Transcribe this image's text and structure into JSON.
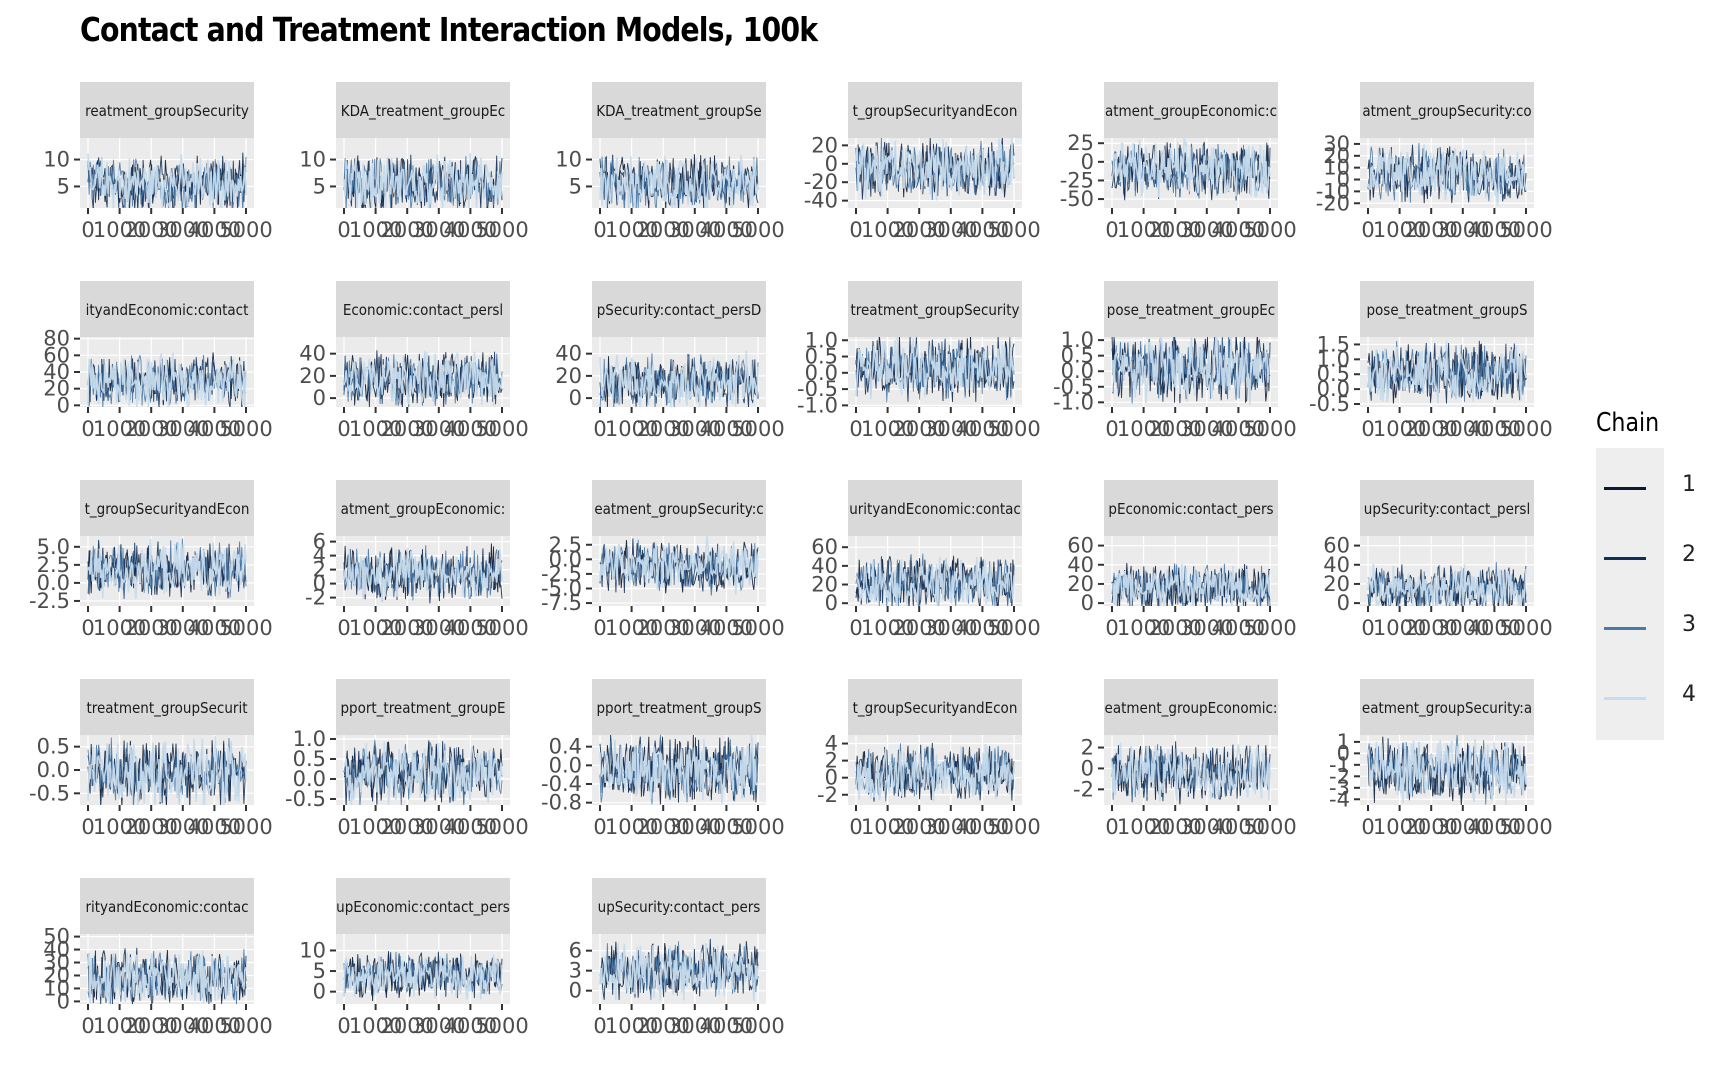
{
  "title": "Contact and Treatment Interaction Models, 100k",
  "chart_data": {
    "type": "line",
    "description_kind": "MCMC trace plots faceted by parameter",
    "x_tick_labels": [
      "0",
      "1000",
      "2000",
      "3000",
      "4000",
      "5000"
    ],
    "x_range": [
      0,
      5000
    ],
    "legend": {
      "title": "Chain",
      "placement": "right",
      "entries": [
        {
          "label": "1",
          "color": "#0b1a33"
        },
        {
          "label": "2",
          "color": "#0e2f57"
        },
        {
          "label": "3",
          "color": "#4a7aa8"
        },
        {
          "label": "4",
          "color": "#c6dbec"
        }
      ]
    },
    "panels": [
      {
        "strip": "reatment_groupSecurity",
        "ylim": [
          1,
          14
        ],
        "yticks": [
          5,
          10
        ],
        "ytick_labels": [
          "5",
          "10"
        ],
        "center": 5.5,
        "spread": 7.5
      },
      {
        "strip": "KDA_treatment_groupEc",
        "ylim": [
          1,
          14
        ],
        "yticks": [
          5,
          10
        ],
        "ytick_labels": [
          "5",
          "10"
        ],
        "center": 5.5,
        "spread": 7.5
      },
      {
        "strip": "KDA_treatment_groupSe",
        "ylim": [
          1,
          14
        ],
        "yticks": [
          5,
          10
        ],
        "ytick_labels": [
          "5",
          "10"
        ],
        "center": 5.5,
        "spread": 7.5
      },
      {
        "strip": "t_groupSecurityandEcon",
        "ylim": [
          -48,
          28
        ],
        "yticks": [
          -40,
          -20,
          0,
          20
        ],
        "ytick_labels": [
          "-40",
          "-20",
          "0",
          "20"
        ],
        "center": -5,
        "spread": 45
      },
      {
        "strip": "atment_groupEconomic:c",
        "ylim": [
          -62,
          32
        ],
        "yticks": [
          -50,
          -25,
          0,
          25
        ],
        "ytick_labels": [
          "-50",
          "-25",
          "0",
          "25"
        ],
        "center": -10,
        "spread": 55
      },
      {
        "strip": "atment_groupSecurity:co",
        "ylim": [
          -24,
          35
        ],
        "yticks": [
          -20,
          -10,
          0,
          10,
          20,
          30
        ],
        "ytick_labels": [
          "-20",
          "-10",
          "0",
          "10",
          "20",
          "30"
        ],
        "center": 5,
        "spread": 35
      },
      {
        "strip": "ityandEconomic:contact",
        "ylim": [
          -2,
          82
        ],
        "yticks": [
          0,
          20,
          40,
          60,
          80
        ],
        "ytick_labels": [
          "0",
          "20",
          "40",
          "60",
          "80"
        ],
        "center": 28,
        "spread": 45
      },
      {
        "strip": "Economic:contact_persl",
        "ylim": [
          -8,
          55
        ],
        "yticks": [
          0,
          20,
          40
        ],
        "ytick_labels": [
          "0",
          "20",
          "40"
        ],
        "center": 17,
        "spread": 35
      },
      {
        "strip": "pSecurity:contact_persD",
        "ylim": [
          -8,
          55
        ],
        "yticks": [
          0,
          20,
          40
        ],
        "ytick_labels": [
          "0",
          "20",
          "40"
        ],
        "center": 15,
        "spread": 35
      },
      {
        "strip": "treatment_groupSecurity",
        "ylim": [
          -1.05,
          1.1
        ],
        "yticks": [
          -1.0,
          -0.5,
          0.0,
          0.5,
          1.0
        ],
        "ytick_labels": [
          "-1.0",
          "-0.5",
          "0.0",
          "0.5",
          "1.0"
        ],
        "center": 0.15,
        "spread": 1.4
      },
      {
        "strip": "pose_treatment_groupEc",
        "ylim": [
          -1.15,
          1.1
        ],
        "yticks": [
          -1.0,
          -0.5,
          0.0,
          0.5,
          1.0
        ],
        "ytick_labels": [
          "-1.0",
          "-0.5",
          "0.0",
          "0.5",
          "1.0"
        ],
        "center": 0.1,
        "spread": 1.5
      },
      {
        "strip": "pose_treatment_groupS",
        "ylim": [
          -0.6,
          1.75
        ],
        "yticks": [
          -0.5,
          0.0,
          0.5,
          1.0,
          1.5
        ],
        "ytick_labels": [
          "-0.5",
          "0.0",
          "0.5",
          "1.0",
          "1.5"
        ],
        "center": 0.55,
        "spread": 1.4
      },
      {
        "strip": "t_groupSecurityandEcon",
        "ylim": [
          -3.2,
          6.5
        ],
        "yticks": [
          -2.5,
          0.0,
          2.5,
          5.0
        ],
        "ytick_labels": [
          "-2.5",
          "0.0",
          "2.5",
          "5.0"
        ],
        "center": 1.8,
        "spread": 5.5
      },
      {
        "strip": "atment_groupEconomic:",
        "ylim": [
          -3.2,
          6.8
        ],
        "yticks": [
          -2,
          0,
          2,
          4,
          6
        ],
        "ytick_labels": [
          "-2",
          "0",
          "2",
          "4",
          "6"
        ],
        "center": 1.5,
        "spread": 5.5
      },
      {
        "strip": "eatment_groupSecurity:c",
        "ylim": [
          -8,
          4
        ],
        "yticks": [
          -7.5,
          -5.0,
          -2.5,
          0.0,
          2.5
        ],
        "ytick_labels": [
          "-7.5",
          "-5.0",
          "-2.5",
          "0.0",
          "2.5"
        ],
        "center": -1.2,
        "spread": 6.5
      },
      {
        "strip": "urityandEconomic:contac",
        "ylim": [
          -3,
          72
        ],
        "yticks": [
          0,
          20,
          40,
          60
        ],
        "ytick_labels": [
          "0",
          "20",
          "40",
          "60"
        ],
        "center": 22,
        "spread": 40
      },
      {
        "strip": "pEconomic:contact_pers",
        "ylim": [
          -3,
          70
        ],
        "yticks": [
          0,
          20,
          40,
          60
        ],
        "ytick_labels": [
          "0",
          "20",
          "40",
          "60"
        ],
        "center": 16,
        "spread": 35
      },
      {
        "strip": "upSecurity:contact_persl",
        "ylim": [
          -3,
          70
        ],
        "yticks": [
          0,
          20,
          40,
          60
        ],
        "ytick_labels": [
          "0",
          "20",
          "40",
          "60"
        ],
        "center": 15,
        "spread": 35
      },
      {
        "strip": "treatment_groupSecurit",
        "ylim": [
          -0.75,
          0.75
        ],
        "yticks": [
          -0.5,
          0.0,
          0.5
        ],
        "ytick_labels": [
          "-0.5",
          "0.0",
          "0.5"
        ],
        "center": -0.05,
        "spread": 1.0
      },
      {
        "strip": "pport_treatment_groupE",
        "ylim": [
          -0.65,
          1.1
        ],
        "yticks": [
          -0.5,
          0.0,
          0.5,
          1.0
        ],
        "ytick_labels": [
          "-0.5",
          "0.0",
          "0.5",
          "1.0"
        ],
        "center": 0.15,
        "spread": 1.1
      },
      {
        "strip": "pport_treatment_groupS",
        "ylim": [
          -0.85,
          0.65
        ],
        "yticks": [
          -0.8,
          -0.4,
          0.0,
          0.4
        ],
        "ytick_labels": [
          "-0.8",
          "-0.4",
          "0.0",
          "0.4"
        ],
        "center": -0.1,
        "spread": 1.0
      },
      {
        "strip": "t_groupSecurityandEcon",
        "ylim": [
          -3.2,
          5
        ],
        "yticks": [
          -2,
          0,
          2,
          4
        ],
        "ytick_labels": [
          "-2",
          "0",
          "2",
          "4"
        ],
        "center": 0.5,
        "spread": 4.5
      },
      {
        "strip": "eatment_groupEconomic:",
        "ylim": [
          -3.5,
          3.2
        ],
        "yticks": [
          -2,
          0,
          2
        ],
        "ytick_labels": [
          "-2",
          "0",
          "2"
        ],
        "center": -0.3,
        "spread": 4.0
      },
      {
        "strip": "eatment_groupSecurity:a",
        "ylim": [
          -4.5,
          1.6
        ],
        "yticks": [
          -4,
          -3,
          -2,
          -1,
          0,
          1
        ],
        "ytick_labels": [
          "-4",
          "-3",
          "-2",
          "-1",
          "0",
          "1"
        ],
        "center": -1.5,
        "spread": 4.0
      },
      {
        "strip": "rityandEconomic:contac",
        "ylim": [
          -2,
          52
        ],
        "yticks": [
          0,
          10,
          20,
          30,
          40,
          50
        ],
        "ytick_labels": [
          "0",
          "10",
          "20",
          "30",
          "40",
          "50"
        ],
        "center": 18,
        "spread": 30
      },
      {
        "strip": "upEconomic:contact_pers",
        "ylim": [
          -3,
          14
        ],
        "yticks": [
          0,
          5,
          10
        ],
        "ytick_labels": [
          "0",
          "5",
          "10"
        ],
        "center": 4,
        "spread": 8
      },
      {
        "strip": "upSecurity:contact_pers",
        "ylim": [
          -2,
          8.5
        ],
        "yticks": [
          0,
          3,
          6
        ],
        "ytick_labels": [
          "0",
          "3",
          "6"
        ],
        "center": 3,
        "spread": 6
      }
    ]
  }
}
